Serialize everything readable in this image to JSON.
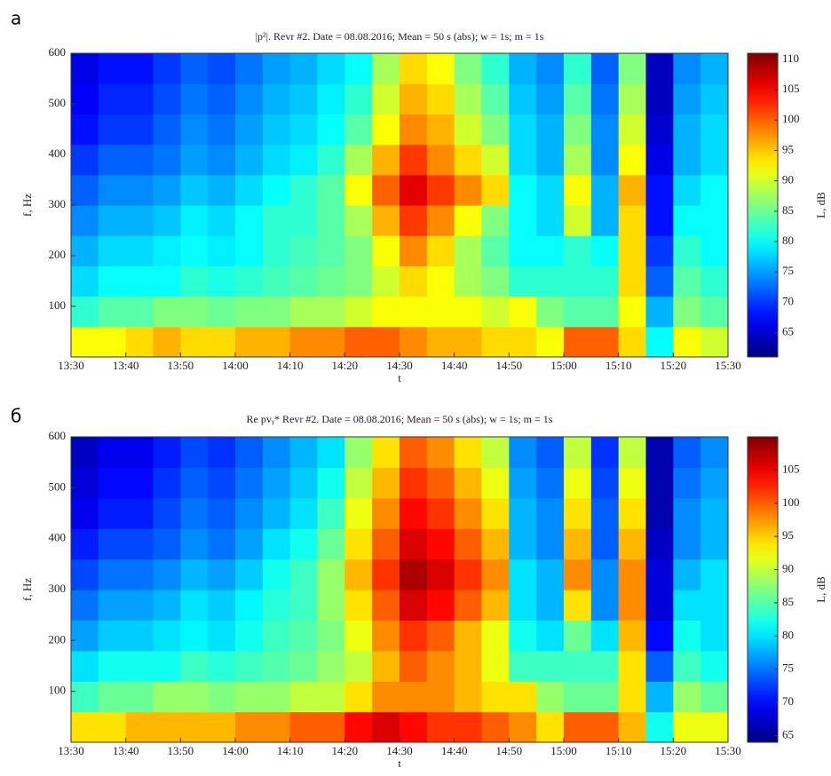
{
  "chart_data": [
    {
      "type": "heatmap",
      "panel_label": "а",
      "title": "|p²|.  Revr #2.  Date = 08.08.2016;  Mean = 50 s (abs);  w = 1s;  m = 1s",
      "xlabel": "t",
      "ylabel": "f, Hz",
      "colorbar_label": "L, dB",
      "colormap": "jet",
      "xlim": [
        810,
        930
      ],
      "ylim": [
        0,
        600
      ],
      "clim": [
        61,
        111
      ],
      "xticks": [
        {
          "value": 810,
          "label": "13:30"
        },
        {
          "value": 820,
          "label": "13:40"
        },
        {
          "value": 830,
          "label": "13:50"
        },
        {
          "value": 840,
          "label": "14:00"
        },
        {
          "value": 850,
          "label": "14:10"
        },
        {
          "value": 860,
          "label": "14:20"
        },
        {
          "value": 870,
          "label": "14:30"
        },
        {
          "value": 880,
          "label": "14:40"
        },
        {
          "value": 890,
          "label": "14:50"
        },
        {
          "value": 900,
          "label": "15:00"
        },
        {
          "value": 910,
          "label": "15:10"
        },
        {
          "value": 920,
          "label": "15:20"
        },
        {
          "value": 930,
          "label": "15:30"
        }
      ],
      "yticks": [
        100,
        200,
        300,
        400,
        500,
        600
      ],
      "cticks": [
        65,
        70,
        75,
        80,
        85,
        90,
        95,
        100,
        105,
        110
      ],
      "xbins": [
        810,
        815,
        820,
        825,
        830,
        835,
        840,
        845,
        850,
        855,
        860,
        865,
        870,
        875,
        880,
        885,
        890,
        895,
        900,
        905,
        910,
        915,
        920,
        925,
        930
      ],
      "ybins": [
        0,
        60,
        120,
        180,
        240,
        300,
        360,
        420,
        480,
        540,
        600
      ],
      "z": [
        [
          92,
          92,
          94,
          96,
          94,
          94,
          96,
          96,
          98,
          98,
          100,
          100,
          98,
          96,
          96,
          94,
          94,
          92,
          100,
          100,
          94,
          80,
          92,
          90
        ],
        [
          82,
          84,
          84,
          86,
          86,
          85,
          86,
          86,
          88,
          88,
          90,
          92,
          92,
          92,
          92,
          90,
          92,
          86,
          84,
          84,
          92,
          76,
          86,
          84
        ],
        [
          78,
          80,
          80,
          80,
          82,
          81,
          82,
          83,
          84,
          85,
          86,
          90,
          94,
          92,
          88,
          86,
          82,
          82,
          82,
          82,
          94,
          72,
          84,
          82
        ],
        [
          76,
          78,
          78,
          79,
          80,
          79,
          80,
          82,
          83,
          84,
          86,
          92,
          98,
          94,
          88,
          84,
          80,
          80,
          82,
          80,
          94,
          70,
          82,
          80
        ],
        [
          74,
          76,
          76,
          77,
          79,
          78,
          80,
          82,
          82,
          84,
          88,
          96,
          102,
          98,
          92,
          86,
          80,
          78,
          90,
          76,
          94,
          68,
          80,
          80
        ],
        [
          72,
          74,
          74,
          75,
          77,
          76,
          78,
          80,
          82,
          84,
          92,
          100,
          106,
          102,
          98,
          94,
          80,
          78,
          92,
          76,
          96,
          68,
          78,
          80
        ],
        [
          70,
          72,
          72,
          73,
          75,
          74,
          76,
          78,
          79,
          82,
          88,
          96,
          102,
          98,
          94,
          90,
          78,
          76,
          88,
          74,
          92,
          66,
          76,
          78
        ],
        [
          68,
          70,
          70,
          72,
          74,
          73,
          75,
          77,
          78,
          80,
          84,
          92,
          98,
          96,
          90,
          86,
          78,
          76,
          86,
          74,
          90,
          65,
          76,
          78
        ],
        [
          67,
          69,
          69,
          71,
          73,
          72,
          74,
          76,
          77,
          79,
          82,
          90,
          96,
          94,
          88,
          84,
          77,
          75,
          84,
          73,
          88,
          64,
          75,
          77
        ],
        [
          66,
          68,
          68,
          70,
          72,
          71,
          73,
          75,
          76,
          78,
          80,
          88,
          94,
          92,
          86,
          82,
          76,
          74,
          82,
          72,
          86,
          64,
          74,
          76
        ]
      ]
    },
    {
      "type": "heatmap",
      "panel_label": "б",
      "title": "Re pvᵧ*  Revr #2.  Date = 08.08.2016;  Mean = 50 s (abs);  w = 1s;  m = 1s",
      "xlabel": "t",
      "ylabel": "f, Hz",
      "colorbar_label": "L, dB",
      "colormap": "jet",
      "xlim": [
        810,
        930
      ],
      "ylim": [
        0,
        600
      ],
      "clim": [
        64,
        110
      ],
      "xticks": [
        {
          "value": 810,
          "label": "13:30"
        },
        {
          "value": 820,
          "label": "13:40"
        },
        {
          "value": 830,
          "label": "13:50"
        },
        {
          "value": 840,
          "label": "14:00"
        },
        {
          "value": 850,
          "label": "14:10"
        },
        {
          "value": 860,
          "label": "14:20"
        },
        {
          "value": 870,
          "label": "14:30"
        },
        {
          "value": 880,
          "label": "14:40"
        },
        {
          "value": 890,
          "label": "14:50"
        },
        {
          "value": 900,
          "label": "15:00"
        },
        {
          "value": 910,
          "label": "15:10"
        },
        {
          "value": 920,
          "label": "15:20"
        },
        {
          "value": 930,
          "label": "15:30"
        }
      ],
      "yticks": [
        100,
        200,
        300,
        400,
        500,
        600
      ],
      "cticks": [
        65,
        70,
        75,
        80,
        85,
        90,
        95,
        100,
        105
      ],
      "xbins": [
        810,
        815,
        820,
        825,
        830,
        835,
        840,
        845,
        850,
        855,
        860,
        865,
        870,
        875,
        880,
        885,
        890,
        895,
        900,
        905,
        910,
        915,
        920,
        925,
        930
      ],
      "ybins": [
        0,
        60,
        120,
        180,
        240,
        300,
        360,
        420,
        480,
        540,
        600
      ],
      "z": [
        [
          94,
          94,
          96,
          96,
          96,
          96,
          98,
          98,
          100,
          100,
          104,
          106,
          104,
          102,
          102,
          100,
          98,
          94,
          100,
          100,
          96,
          82,
          92,
          92
        ],
        [
          84,
          86,
          86,
          88,
          88,
          87,
          88,
          88,
          90,
          90,
          94,
          98,
          98,
          98,
          96,
          94,
          94,
          88,
          86,
          86,
          94,
          78,
          88,
          86
        ],
        [
          80,
          82,
          82,
          82,
          84,
          83,
          84,
          85,
          86,
          88,
          90,
          96,
          100,
          98,
          96,
          92,
          84,
          84,
          84,
          84,
          94,
          74,
          84,
          82
        ],
        [
          77,
          79,
          79,
          80,
          81,
          80,
          82,
          84,
          85,
          87,
          92,
          98,
          102,
          100,
          96,
          92,
          82,
          80,
          86,
          80,
          96,
          70,
          82,
          80
        ],
        [
          75,
          77,
          77,
          78,
          80,
          79,
          81,
          83,
          84,
          88,
          94,
          100,
          106,
          104,
          100,
          96,
          80,
          78,
          94,
          76,
          98,
          68,
          80,
          80
        ],
        [
          73,
          75,
          75,
          76,
          78,
          77,
          79,
          82,
          84,
          88,
          96,
          102,
          108,
          106,
          102,
          98,
          80,
          78,
          98,
          76,
          98,
          68,
          78,
          80
        ],
        [
          71,
          73,
          73,
          74,
          76,
          75,
          77,
          80,
          82,
          86,
          94,
          100,
          106,
          104,
          100,
          96,
          78,
          76,
          96,
          74,
          96,
          67,
          76,
          78
        ],
        [
          69,
          71,
          71,
          73,
          75,
          74,
          76,
          78,
          80,
          84,
          92,
          98,
          104,
          102,
          98,
          94,
          78,
          76,
          94,
          74,
          94,
          66,
          76,
          78
        ],
        [
          68,
          70,
          70,
          72,
          74,
          73,
          75,
          77,
          79,
          82,
          90,
          96,
          102,
          100,
          96,
          92,
          77,
          75,
          92,
          73,
          92,
          66,
          75,
          77
        ],
        [
          67,
          69,
          69,
          71,
          73,
          72,
          74,
          76,
          78,
          80,
          88,
          94,
          100,
          98,
          94,
          90,
          76,
          74,
          90,
          72,
          90,
          66,
          74,
          76
        ]
      ]
    }
  ]
}
